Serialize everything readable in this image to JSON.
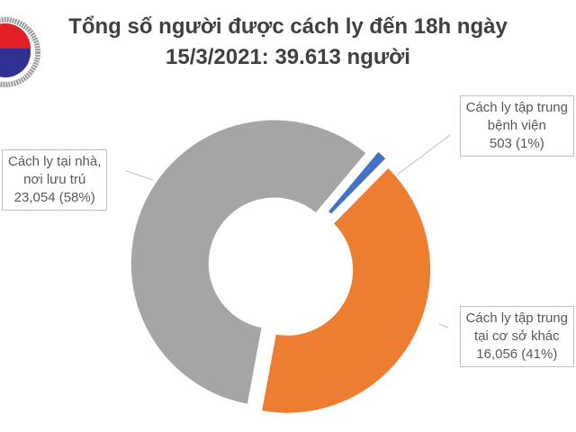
{
  "chart_data": {
    "type": "pie",
    "donut": true,
    "title_lines": [
      "Tổng số người được cách ly đến 18h ngày",
      "15/3/2021: 39.613 người"
    ],
    "slices": [
      {
        "label_lines": [
          "Cách ly tập trung",
          "bệnh viện",
          "503 (1%)"
        ],
        "value": 503,
        "percent": 1,
        "color": "#4472c4"
      },
      {
        "label_lines": [
          "Cách ly tập trung",
          "tại cơ sở khác",
          "16,056 (41%)"
        ],
        "value": 16056,
        "percent": 41,
        "color": "#ed7d31"
      },
      {
        "label_lines": [
          "Cách ly tại nhà,",
          "nơi lưu trú",
          "23,054 (58%)"
        ],
        "value": 23054,
        "percent": 58,
        "color": "#a5a5a5"
      }
    ],
    "start_angle_deg": 40,
    "legend": "none"
  }
}
